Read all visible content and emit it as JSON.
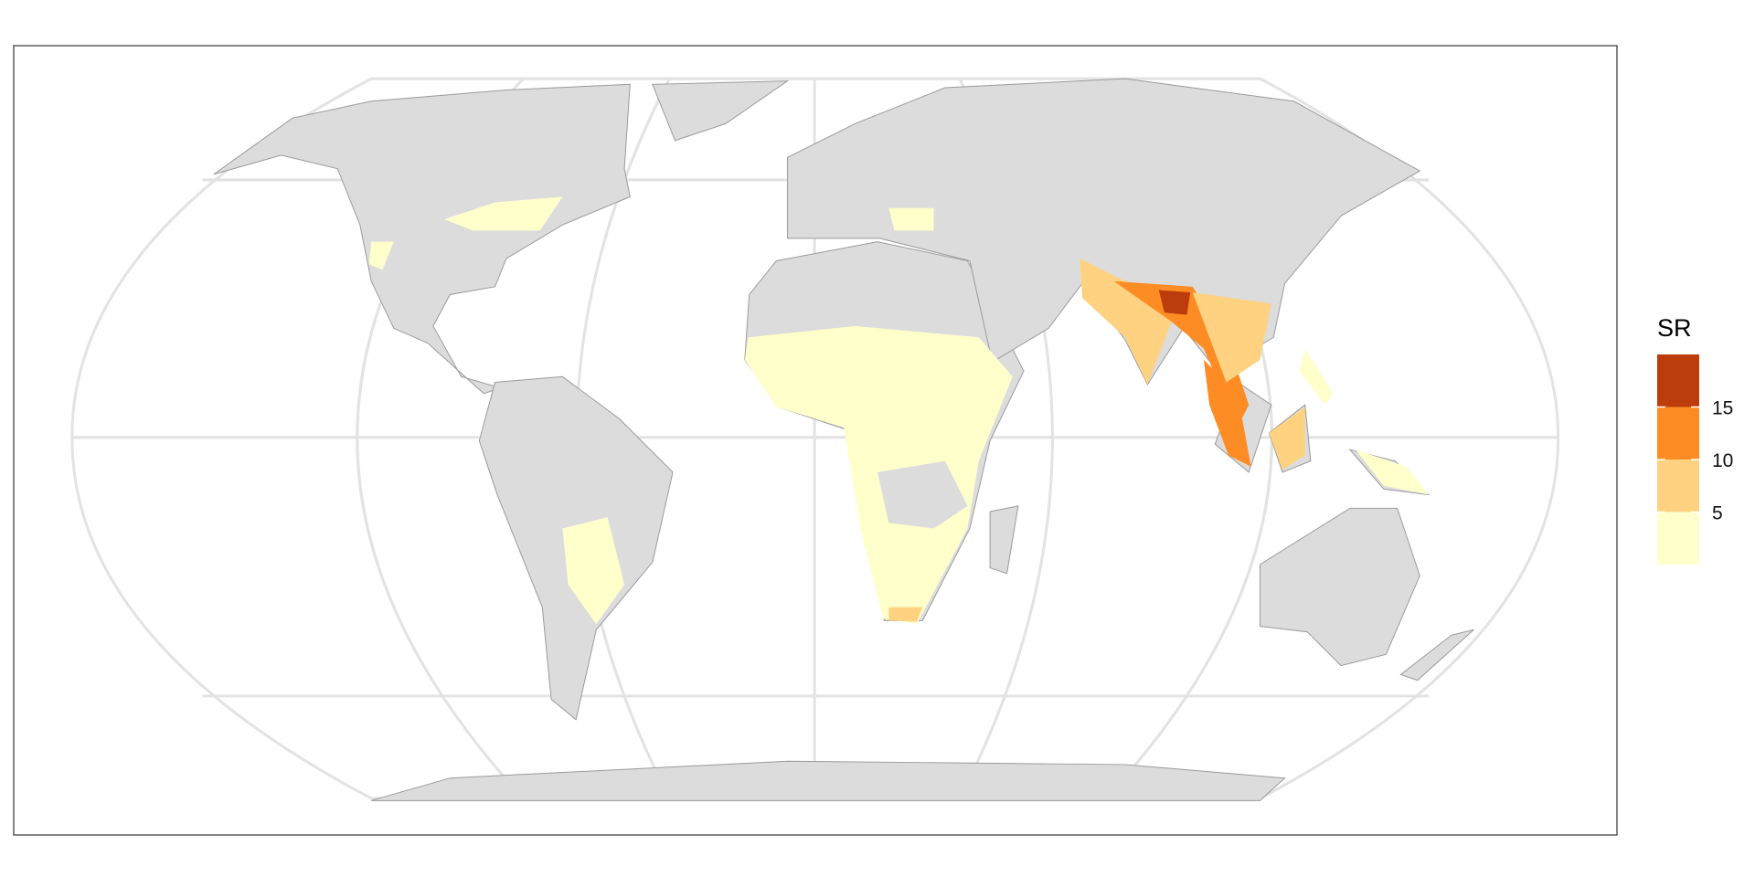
{
  "legend": {
    "title": "SR",
    "colors": [
      "#ffffcc",
      "#fed280",
      "#fd8c24",
      "#bd3c0c"
    ],
    "breaks": [
      5,
      10,
      15
    ]
  }
}
